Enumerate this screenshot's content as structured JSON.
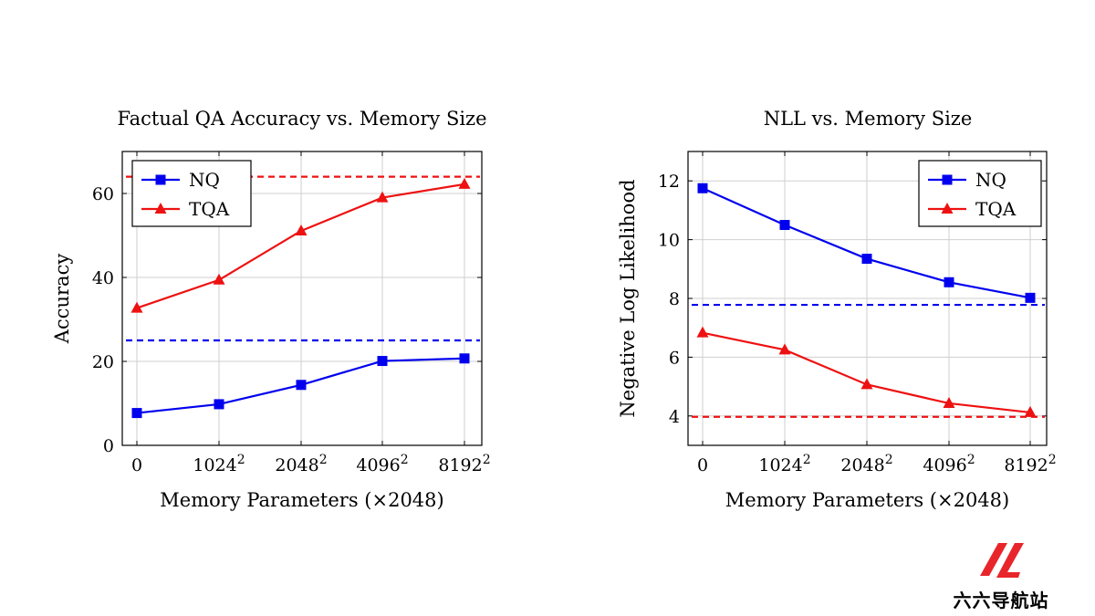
{
  "chart_data": [
    {
      "type": "line",
      "title": "Factual QA Accuracy vs. Memory Size",
      "xlabel": "Memory Parameters (×2048)",
      "ylabel": "Accuracy",
      "categories": [
        "0",
        "1024",
        "2048",
        "4096",
        "8192"
      ],
      "category_superscript": "2",
      "ylim": [
        0,
        70
      ],
      "yticks": [
        0,
        20,
        40,
        60
      ],
      "legend_position": "top-left",
      "grid": true,
      "series": [
        {
          "name": "NQ",
          "color": "#0000ee",
          "marker": "square",
          "values": [
            7.7,
            9.8,
            14.4,
            20.1,
            20.7
          ],
          "baseline": 25
        },
        {
          "name": "TQA",
          "color": "#ee1111",
          "marker": "triangle",
          "values": [
            32.7,
            39.4,
            51.1,
            59.0,
            62.2
          ],
          "baseline": 64
        }
      ]
    },
    {
      "type": "line",
      "title": "NLL vs. Memory Size",
      "xlabel": "Memory Parameters (×2048)",
      "ylabel": "Negative Log Likelihood",
      "categories": [
        "0",
        "1024",
        "2048",
        "4096",
        "8192"
      ],
      "category_superscript": "2",
      "ylim": [
        3,
        13
      ],
      "yticks": [
        4,
        6,
        8,
        10,
        12
      ],
      "legend_position": "top-right",
      "grid": true,
      "series": [
        {
          "name": "NQ",
          "color": "#0000ee",
          "marker": "square",
          "values": [
            11.75,
            10.5,
            9.35,
            8.55,
            8.02
          ],
          "baseline": 7.78
        },
        {
          "name": "TQA",
          "color": "#ee1111",
          "marker": "triangle",
          "values": [
            6.83,
            6.25,
            5.07,
            4.43,
            4.12
          ],
          "baseline": 3.97
        }
      ]
    }
  ],
  "watermark": {
    "text": "六六导航站",
    "mark_color": "#e8252b"
  }
}
